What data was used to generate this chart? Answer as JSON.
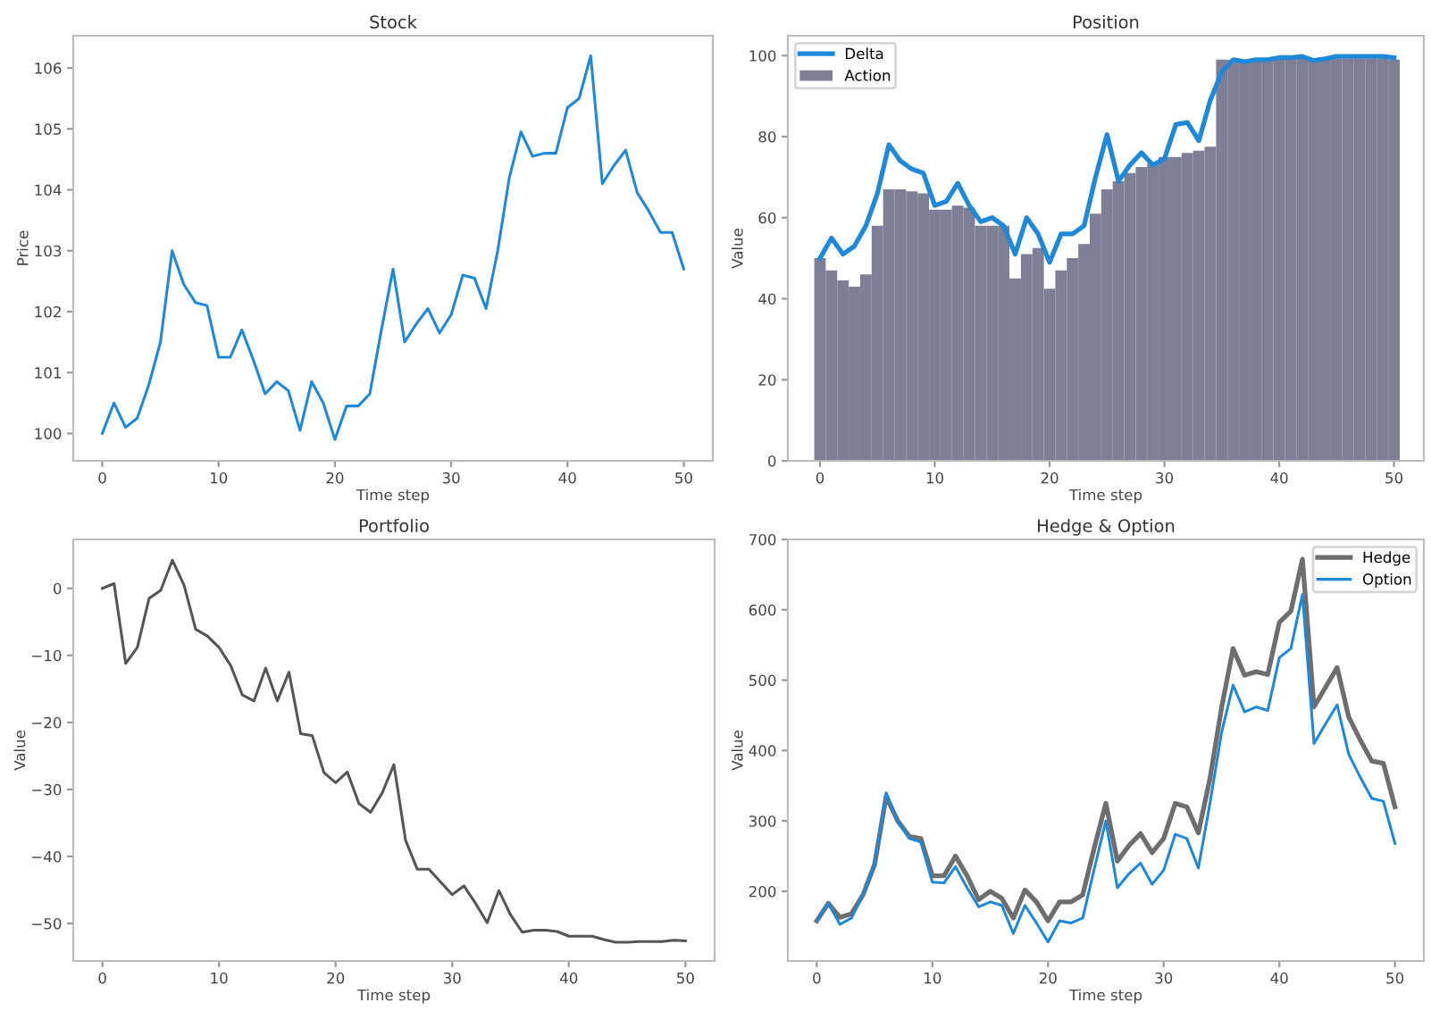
{
  "chart_data": [
    {
      "type": "line",
      "title": "Stock",
      "xlabel": "Time step",
      "ylabel": "Price",
      "xlim": [
        -2.5,
        52.5
      ],
      "xticks": [
        0,
        10,
        20,
        30,
        40,
        50
      ],
      "ylim": [
        99.55,
        106.53
      ],
      "yticks": [
        100,
        101,
        102,
        103,
        104,
        105,
        106
      ],
      "grid": false,
      "legend": false,
      "x": [
        0,
        1,
        2,
        3,
        4,
        5,
        6,
        7,
        8,
        9,
        10,
        11,
        12,
        13,
        14,
        15,
        16,
        17,
        18,
        19,
        20,
        21,
        22,
        23,
        24,
        25,
        26,
        27,
        28,
        29,
        30,
        31,
        32,
        33,
        34,
        35,
        36,
        37,
        38,
        39,
        40,
        41,
        42,
        43,
        44,
        45,
        46,
        47,
        48,
        49,
        50
      ],
      "series": [
        {
          "color": "#1f88d8",
          "values": [
            100.0,
            100.5,
            100.1,
            100.25,
            100.8,
            101.5,
            103.0,
            102.45,
            102.15,
            102.1,
            101.25,
            101.25,
            101.7,
            101.2,
            100.65,
            100.85,
            100.7,
            100.05,
            100.85,
            100.5,
            99.9,
            100.45,
            100.45,
            100.65,
            101.7,
            102.7,
            101.5,
            101.8,
            102.05,
            101.65,
            101.95,
            102.6,
            102.55,
            102.05,
            103.0,
            104.2,
            104.95,
            104.55,
            104.6,
            104.6,
            105.35,
            105.5,
            106.2,
            104.1,
            104.4,
            104.65,
            103.95,
            103.65,
            103.3,
            103.3,
            102.7
          ]
        }
      ]
    },
    {
      "type": "line",
      "title": "Position",
      "xlabel": "Time step",
      "ylabel": "Value",
      "xlim": [
        -2.8,
        52.6
      ],
      "xticks": [
        0,
        10,
        20,
        30,
        40,
        50
      ],
      "ylim": [
        0,
        104.9
      ],
      "yticks": [
        0,
        20,
        40,
        60,
        80,
        100
      ],
      "grid": false,
      "legend": "top left",
      "x": [
        0,
        1,
        2,
        3,
        4,
        5,
        6,
        7,
        8,
        9,
        10,
        11,
        12,
        13,
        14,
        15,
        16,
        17,
        18,
        19,
        20,
        21,
        22,
        23,
        24,
        25,
        26,
        27,
        28,
        29,
        30,
        31,
        32,
        33,
        34,
        35,
        36,
        37,
        38,
        39,
        40,
        41,
        42,
        43,
        44,
        45,
        46,
        47,
        48,
        49,
        50
      ],
      "series": [
        {
          "name": "Delta",
          "type": "line",
          "color": "#1f88d8",
          "values": [
            50,
            55,
            51,
            53,
            58,
            66,
            78,
            74,
            72,
            71,
            63,
            64,
            68.5,
            63,
            59,
            60,
            58,
            51,
            60,
            56,
            49,
            56,
            56,
            58,
            70,
            80.5,
            69,
            73,
            76,
            73,
            74.5,
            83,
            83.5,
            79,
            89,
            96,
            99,
            98.5,
            99,
            99,
            99.5,
            99.5,
            99.8,
            98.8,
            99.2,
            99.8,
            99.8,
            99.8,
            99.8,
            99.8,
            99.5
          ]
        },
        {
          "name": "Action",
          "type": "bar",
          "color": "#77778f",
          "values": [
            50,
            47,
            44.5,
            43,
            46,
            58,
            67,
            67,
            66.5,
            66,
            62,
            62,
            63,
            62.5,
            58,
            58,
            58,
            45,
            51,
            52.5,
            42.5,
            47,
            50,
            53.5,
            61,
            67,
            69,
            71,
            72.5,
            73.5,
            75,
            75,
            76,
            76.5,
            77.5,
            99,
            99,
            99,
            99,
            99.3,
            99.5,
            99.5,
            99.5,
            98.8,
            99,
            99.3,
            99.3,
            99.3,
            99.3,
            99.3,
            99
          ]
        }
      ]
    },
    {
      "type": "line",
      "title": "Portfolio",
      "xlabel": "Time step",
      "ylabel": "Value",
      "xlim": [
        -2.5,
        52.5
      ],
      "xticks": [
        0,
        10,
        20,
        30,
        40,
        50
      ],
      "ylim": [
        -55.6,
        7.3
      ],
      "yticks": [
        {
          "value": -50,
          "label": "−50"
        },
        {
          "value": -40,
          "label": "−40"
        },
        {
          "value": -30,
          "label": "−30"
        },
        {
          "value": -20,
          "label": "−20"
        },
        {
          "value": -10,
          "label": "−10"
        },
        0
      ],
      "grid": false,
      "legend": false,
      "x": [
        0,
        1,
        2,
        3,
        4,
        5,
        6,
        7,
        8,
        9,
        10,
        11,
        12,
        13,
        14,
        15,
        16,
        17,
        18,
        19,
        20,
        21,
        22,
        23,
        24,
        25,
        26,
        27,
        28,
        29,
        30,
        31,
        32,
        33,
        34,
        35,
        36,
        37,
        38,
        39,
        40,
        41,
        42,
        43,
        44,
        45,
        46,
        47,
        48,
        49,
        50
      ],
      "series": [
        {
          "color": "#555555",
          "values": [
            0,
            0.7,
            -11.2,
            -8.8,
            -1.5,
            -0.3,
            4.2,
            0.5,
            -6.1,
            -7.1,
            -8.8,
            -11.5,
            -15.9,
            -16.8,
            -11.9,
            -16.8,
            -12.5,
            -21.7,
            -22.0,
            -27.5,
            -29.0,
            -27.4,
            -32.1,
            -33.4,
            -30.5,
            -26.3,
            -37.6,
            -41.9,
            -41.9,
            -43.8,
            -45.7,
            -44.4,
            -47.0,
            -49.9,
            -45.1,
            -48.7,
            -51.3,
            -51.0,
            -51.0,
            -51.2,
            -51.9,
            -51.9,
            -51.9,
            -52.4,
            -52.8,
            -52.8,
            -52.7,
            -52.7,
            -52.7,
            -52.5,
            -52.6
          ]
        }
      ]
    },
    {
      "type": "line",
      "title": "Hedge & Option",
      "xlabel": "Time step",
      "ylabel": "Value",
      "xlim": [
        -2.5,
        52.5
      ],
      "xticks": [
        0,
        10,
        20,
        30,
        40,
        50
      ],
      "ylim": [
        101,
        700
      ],
      "yticks": [
        200,
        300,
        400,
        500,
        600,
        700
      ],
      "grid": false,
      "legend": "top right",
      "x": [
        0,
        1,
        2,
        3,
        4,
        5,
        6,
        7,
        8,
        9,
        10,
        11,
        12,
        13,
        14,
        15,
        16,
        17,
        18,
        19,
        20,
        21,
        22,
        23,
        24,
        25,
        26,
        27,
        28,
        29,
        30,
        31,
        32,
        33,
        34,
        35,
        36,
        37,
        38,
        39,
        40,
        41,
        42,
        43,
        44,
        45,
        46,
        47,
        48,
        49,
        50
      ],
      "series": [
        {
          "name": "Hedge",
          "type": "line",
          "color": "#6e6e6e",
          "values": [
            158,
            183,
            163,
            168,
            195,
            238,
            335,
            300,
            278,
            275,
            222,
            222,
            250,
            222,
            188,
            200,
            190,
            162,
            202,
            185,
            158,
            185,
            185,
            195,
            262,
            325,
            243,
            265,
            282,
            255,
            275,
            325,
            320,
            283,
            360,
            460,
            545,
            507,
            512,
            508,
            582,
            598,
            672,
            462,
            490,
            518,
            448,
            415,
            385,
            382,
            320
          ]
        },
        {
          "name": "Option",
          "type": "line",
          "color": "#1f88d8",
          "values": [
            158,
            183,
            153,
            162,
            195,
            238,
            340,
            300,
            275,
            270,
            213,
            212,
            235,
            205,
            178,
            185,
            180,
            140,
            180,
            155,
            128,
            158,
            155,
            162,
            232,
            300,
            205,
            225,
            240,
            210,
            230,
            281,
            275,
            233,
            325,
            425,
            493,
            455,
            462,
            457,
            532,
            545,
            622,
            410,
            438,
            465,
            395,
            362,
            332,
            328,
            268
          ]
        }
      ]
    }
  ]
}
